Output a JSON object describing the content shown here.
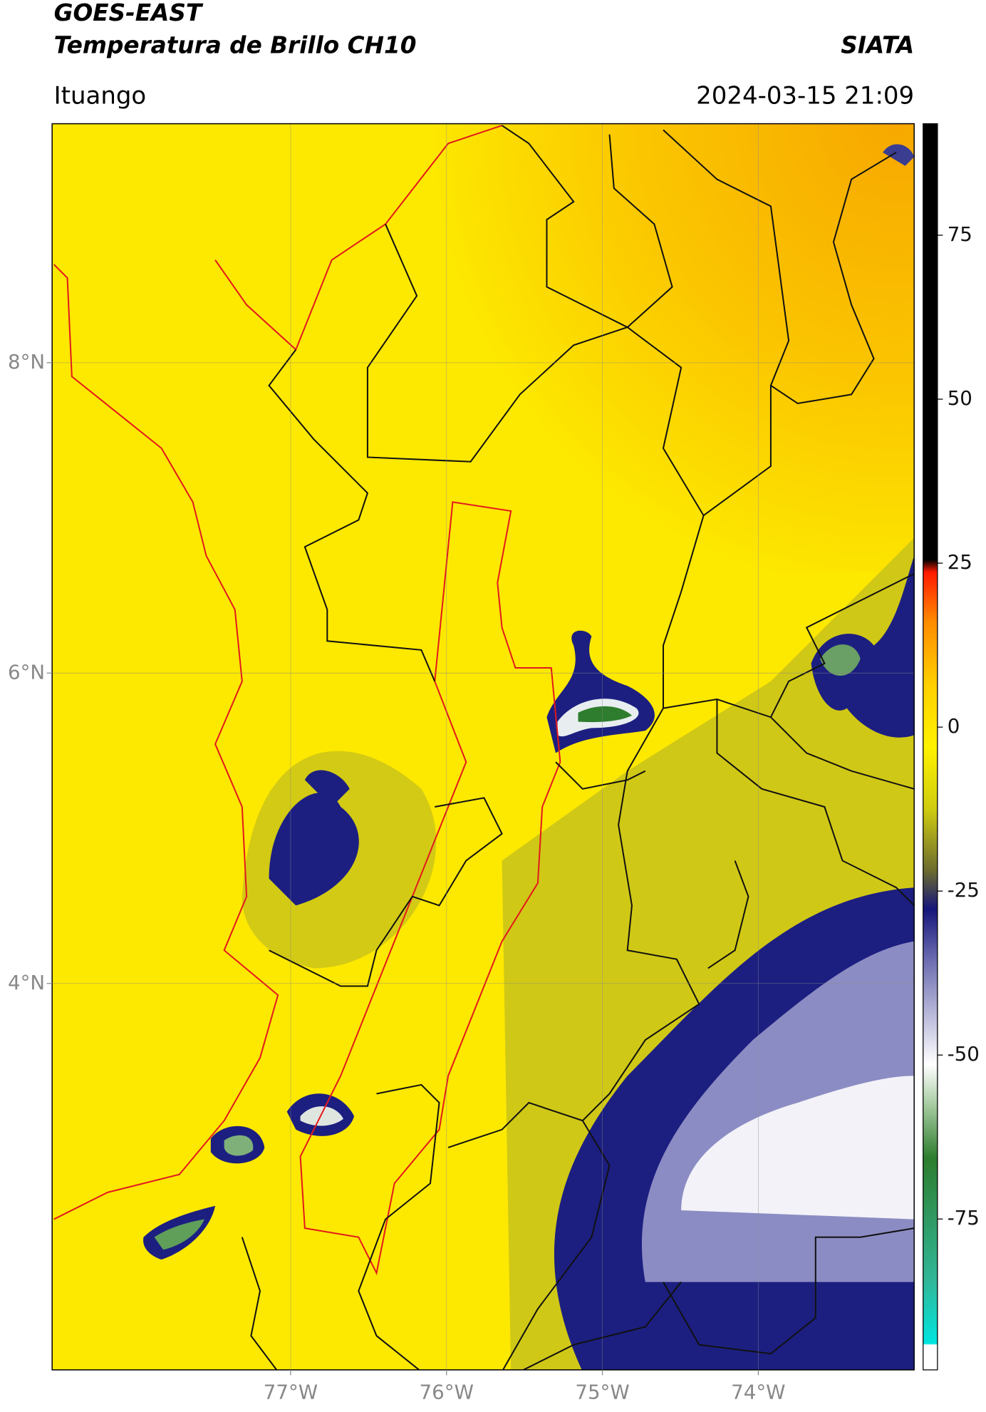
{
  "chart_data": {
    "type": "map",
    "title": "GOES-EAST",
    "subtitle": "Temperatura de Brillo CH10",
    "source": "SIATA",
    "location": "Ituango",
    "datetime": "2024-03-15 21:09",
    "xlim": [
      -78.53,
      -73.0
    ],
    "ylim": [
      1.51,
      9.54
    ],
    "xticks": [
      {
        "value": -77,
        "label": "77°W"
      },
      {
        "value": -76,
        "label": "76°W"
      },
      {
        "value": -75,
        "label": "75°W"
      },
      {
        "value": -74,
        "label": "74°W"
      }
    ],
    "yticks": [
      {
        "value": 8,
        "label": "8°N"
      },
      {
        "value": 6,
        "label": "6°N"
      },
      {
        "value": 4,
        "label": "4°N"
      }
    ],
    "grid": true,
    "colorbar": {
      "lim": [
        -98,
        92
      ],
      "ticks": [
        75,
        50,
        25,
        0,
        -25,
        -50,
        -75
      ]
    }
  }
}
